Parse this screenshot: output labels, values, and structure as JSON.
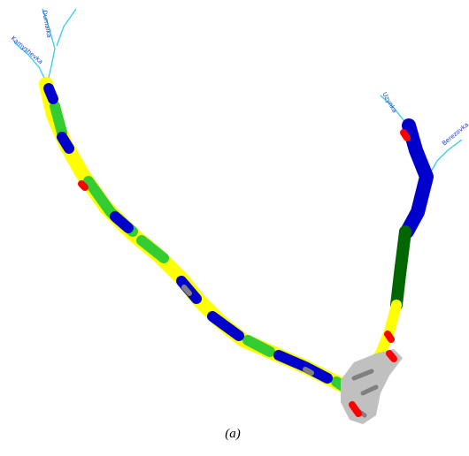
{
  "map": {
    "rivers": [
      {
        "label": "Durnaika"
      },
      {
        "label": "Kamyshevka"
      },
      {
        "label": "Uzynka"
      },
      {
        "label": "Berezovka"
      }
    ],
    "caption": "(a)"
  }
}
